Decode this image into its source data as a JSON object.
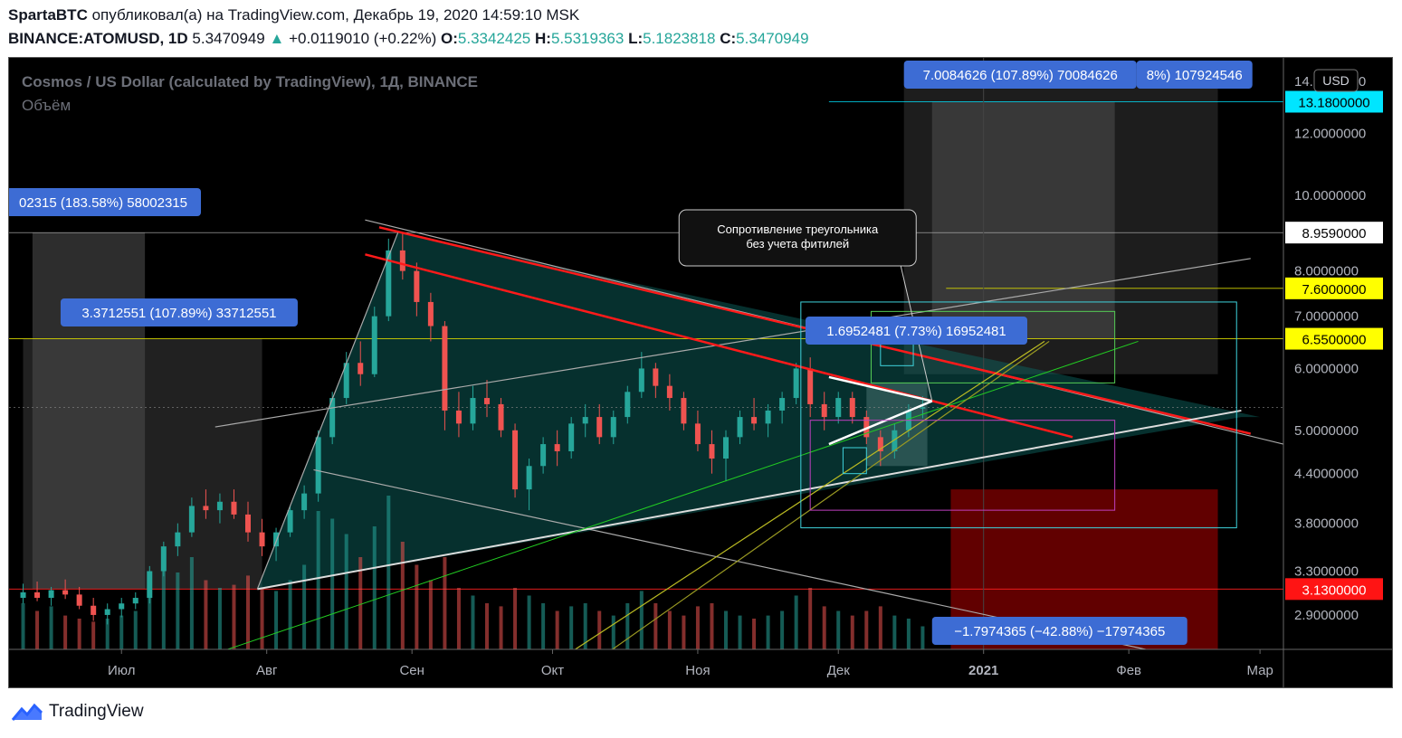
{
  "header": {
    "author": "SpartaBTC",
    "published_text": "опубликовал(а) на TradingView.com, Декабрь 19, 2020 14:59:10 MSK",
    "symbol": "BINANCE:ATOMUSD, 1D",
    "last": "5.3470949",
    "change": "+0.0119010 (+0.22%)",
    "o_label": "O:",
    "o_value": "5.3342425",
    "h_label": "H:",
    "h_value": "5.5319363",
    "l_label": "L:",
    "l_value": "5.1823818",
    "c_label": "C:",
    "c_value": "5.3470949"
  },
  "footer": {
    "brand": "TradingView"
  },
  "colors": {
    "up": "#26a69a",
    "down": "#ef5350",
    "background": "#000000",
    "resistance": "#ff1a1a",
    "label_bg": "#3d6cd4",
    "highlight_yellow": "#ffff00",
    "highlight_cyan": "#00e5ff"
  },
  "chart_data": {
    "type": "candlestick",
    "title": "Cosmos / US Dollar (calculated by TradingView), 1Д, BINANCE",
    "subtitle": "Объём",
    "currency": "USD",
    "x_ticks": [
      "Июл",
      "Авг",
      "Сен",
      "Окт",
      "Ноя",
      "Дек",
      "2021",
      "Фев",
      "Мар"
    ],
    "y_ticks": [
      "14.0000000",
      "12.0000000",
      "10.0000000",
      "8.0000000",
      "7.0000000",
      "6.0000000",
      "5.0000000",
      "4.4000000",
      "3.8000000",
      "3.3000000",
      "2.9000000"
    ],
    "x_range": [
      "2020-06-07",
      "2021-03-06"
    ],
    "y_range_log": [
      2.62,
      15.0
    ],
    "price_labels": [
      {
        "value": "13.1800000",
        "style": "cyan"
      },
      {
        "value": "8.9590000",
        "style": "white"
      },
      {
        "value": "7.6000000",
        "style": "yellow"
      },
      {
        "value": "6.5500000",
        "style": "yellow"
      },
      {
        "value": "3.1300000",
        "style": "red"
      }
    ],
    "measure_labels": [
      "7.0084626 (107.89%) 70084626",
      "8%) 107924546",
      "02315 (183.58%) 58002315",
      "3.3712551 (107.89%) 33712551",
      "1.6952481 (7.73%) 16952481",
      "−1.7974365 (−42.88%) −17974365"
    ],
    "annotation": "Сопротивление треугольника\nбез учета фитилей",
    "series": [
      {
        "type": "ohlc",
        "points": [
          [
            "2020-06-10",
            3.05,
            3.18,
            3.0,
            3.1
          ],
          [
            "2020-06-13",
            3.1,
            3.2,
            3.02,
            3.05
          ],
          [
            "2020-06-16",
            3.05,
            3.15,
            2.98,
            3.12
          ],
          [
            "2020-06-19",
            3.12,
            3.22,
            3.04,
            3.08
          ],
          [
            "2020-06-22",
            3.08,
            3.15,
            2.95,
            2.98
          ],
          [
            "2020-06-25",
            2.98,
            3.05,
            2.85,
            2.9
          ],
          [
            "2020-06-28",
            2.9,
            3.0,
            2.82,
            2.95
          ],
          [
            "2020-07-01",
            2.95,
            3.05,
            2.88,
            3.0
          ],
          [
            "2020-07-04",
            3.0,
            3.1,
            2.95,
            3.05
          ],
          [
            "2020-07-07",
            3.05,
            3.35,
            3.0,
            3.3
          ],
          [
            "2020-07-10",
            3.3,
            3.6,
            3.25,
            3.55
          ],
          [
            "2020-07-13",
            3.55,
            3.8,
            3.45,
            3.7
          ],
          [
            "2020-07-16",
            3.7,
            4.1,
            3.65,
            4.0
          ],
          [
            "2020-07-19",
            4.0,
            4.2,
            3.85,
            3.95
          ],
          [
            "2020-07-22",
            3.95,
            4.15,
            3.8,
            4.05
          ],
          [
            "2020-07-25",
            4.05,
            4.2,
            3.85,
            3.9
          ],
          [
            "2020-07-28",
            3.9,
            4.05,
            3.6,
            3.7
          ],
          [
            "2020-07-31",
            3.7,
            3.85,
            3.45,
            3.55
          ],
          [
            "2020-08-03",
            3.55,
            3.75,
            3.4,
            3.7
          ],
          [
            "2020-08-06",
            3.7,
            4.0,
            3.65,
            3.95
          ],
          [
            "2020-08-09",
            3.95,
            4.25,
            3.85,
            4.15
          ],
          [
            "2020-08-12",
            4.15,
            5.0,
            4.05,
            4.9
          ],
          [
            "2020-08-15",
            4.9,
            5.6,
            4.8,
            5.5
          ],
          [
            "2020-08-18",
            5.5,
            6.3,
            5.4,
            6.1
          ],
          [
            "2020-08-21",
            6.1,
            6.5,
            5.7,
            5.9
          ],
          [
            "2020-08-24",
            5.9,
            7.2,
            5.85,
            7.0
          ],
          [
            "2020-08-27",
            7.0,
            8.8,
            6.9,
            8.5
          ],
          [
            "2020-08-30",
            8.5,
            8.96,
            7.8,
            8.0
          ],
          [
            "2020-09-02",
            8.0,
            8.2,
            7.0,
            7.3
          ],
          [
            "2020-09-05",
            7.3,
            7.5,
            6.5,
            6.8
          ],
          [
            "2020-09-08",
            6.8,
            6.9,
            5.0,
            5.3
          ],
          [
            "2020-09-11",
            5.3,
            5.6,
            4.9,
            5.1
          ],
          [
            "2020-09-14",
            5.1,
            5.7,
            5.0,
            5.5
          ],
          [
            "2020-09-17",
            5.5,
            5.8,
            5.2,
            5.4
          ],
          [
            "2020-09-20",
            5.4,
            5.5,
            4.9,
            5.0
          ],
          [
            "2020-09-23",
            5.0,
            5.1,
            4.1,
            4.2
          ],
          [
            "2020-09-26",
            4.2,
            4.6,
            3.95,
            4.5
          ],
          [
            "2020-09-29",
            4.5,
            4.9,
            4.4,
            4.8
          ],
          [
            "2020-10-02",
            4.8,
            5.0,
            4.5,
            4.7
          ],
          [
            "2020-10-05",
            4.7,
            5.2,
            4.6,
            5.1
          ],
          [
            "2020-10-08",
            5.1,
            5.4,
            4.9,
            5.2
          ],
          [
            "2020-10-11",
            5.2,
            5.4,
            4.8,
            4.9
          ],
          [
            "2020-10-14",
            4.9,
            5.3,
            4.8,
            5.2
          ],
          [
            "2020-10-17",
            5.2,
            5.7,
            5.1,
            5.6
          ],
          [
            "2020-10-20",
            5.6,
            6.3,
            5.5,
            6.0
          ],
          [
            "2020-10-23",
            6.0,
            6.1,
            5.5,
            5.7
          ],
          [
            "2020-10-26",
            5.7,
            5.9,
            5.3,
            5.5
          ],
          [
            "2020-10-29",
            5.5,
            5.6,
            5.0,
            5.1
          ],
          [
            "2020-11-01",
            5.1,
            5.3,
            4.7,
            4.8
          ],
          [
            "2020-11-04",
            4.8,
            5.0,
            4.4,
            4.6
          ],
          [
            "2020-11-07",
            4.6,
            5.0,
            4.3,
            4.9
          ],
          [
            "2020-11-10",
            4.9,
            5.3,
            4.8,
            5.2
          ],
          [
            "2020-11-13",
            5.2,
            5.5,
            5.0,
            5.1
          ],
          [
            "2020-11-16",
            5.1,
            5.4,
            4.9,
            5.3
          ],
          [
            "2020-11-19",
            5.3,
            5.6,
            5.1,
            5.5
          ],
          [
            "2020-11-22",
            5.5,
            6.1,
            5.4,
            6.0
          ],
          [
            "2020-11-25",
            6.0,
            6.2,
            5.2,
            5.4
          ],
          [
            "2020-11-28",
            5.4,
            5.6,
            5.0,
            5.2
          ],
          [
            "2020-12-01",
            5.2,
            5.6,
            5.1,
            5.5
          ],
          [
            "2020-12-04",
            5.5,
            5.6,
            5.1,
            5.2
          ],
          [
            "2020-12-07",
            5.2,
            5.3,
            4.8,
            4.9
          ],
          [
            "2020-12-10",
            4.9,
            5.0,
            4.5,
            4.7
          ],
          [
            "2020-12-13",
            4.7,
            5.1,
            4.6,
            5.0
          ],
          [
            "2020-12-16",
            5.0,
            5.4,
            4.9,
            5.3
          ],
          [
            "2020-12-19",
            5.33,
            5.53,
            5.18,
            5.35
          ]
        ]
      }
    ],
    "volume": [
      [
        "2020-06-10",
        0.3
      ],
      [
        "2020-06-13",
        0.25
      ],
      [
        "2020-06-16",
        0.28
      ],
      [
        "2020-06-19",
        0.22
      ],
      [
        "2020-06-22",
        0.2
      ],
      [
        "2020-06-25",
        0.18
      ],
      [
        "2020-06-28",
        0.2
      ],
      [
        "2020-07-01",
        0.22
      ],
      [
        "2020-07-04",
        0.25
      ],
      [
        "2020-07-07",
        0.45
      ],
      [
        "2020-07-10",
        0.55
      ],
      [
        "2020-07-13",
        0.5
      ],
      [
        "2020-07-16",
        0.6
      ],
      [
        "2020-07-19",
        0.45
      ],
      [
        "2020-07-22",
        0.4
      ],
      [
        "2020-07-25",
        0.42
      ],
      [
        "2020-07-28",
        0.48
      ],
      [
        "2020-07-31",
        0.4
      ],
      [
        "2020-08-03",
        0.38
      ],
      [
        "2020-08-06",
        0.45
      ],
      [
        "2020-08-09",
        0.55
      ],
      [
        "2020-08-12",
        0.9
      ],
      [
        "2020-08-15",
        0.85
      ],
      [
        "2020-08-18",
        0.75
      ],
      [
        "2020-08-21",
        0.6
      ],
      [
        "2020-08-24",
        0.8
      ],
      [
        "2020-08-27",
        1.0
      ],
      [
        "2020-08-30",
        0.7
      ],
      [
        "2020-09-02",
        0.55
      ],
      [
        "2020-09-05",
        0.45
      ],
      [
        "2020-09-08",
        0.6
      ],
      [
        "2020-09-11",
        0.4
      ],
      [
        "2020-09-14",
        0.35
      ],
      [
        "2020-09-17",
        0.3
      ],
      [
        "2020-09-20",
        0.28
      ],
      [
        "2020-09-23",
        0.4
      ],
      [
        "2020-09-26",
        0.35
      ],
      [
        "2020-09-29",
        0.3
      ],
      [
        "2020-10-02",
        0.25
      ],
      [
        "2020-10-05",
        0.28
      ],
      [
        "2020-10-08",
        0.3
      ],
      [
        "2020-10-11",
        0.25
      ],
      [
        "2020-10-14",
        0.22
      ],
      [
        "2020-10-17",
        0.3
      ],
      [
        "2020-10-20",
        0.38
      ],
      [
        "2020-10-23",
        0.3
      ],
      [
        "2020-10-26",
        0.25
      ],
      [
        "2020-10-29",
        0.22
      ],
      [
        "2020-11-01",
        0.28
      ],
      [
        "2020-11-04",
        0.3
      ],
      [
        "2020-11-07",
        0.25
      ],
      [
        "2020-11-10",
        0.22
      ],
      [
        "2020-11-13",
        0.2
      ],
      [
        "2020-11-16",
        0.22
      ],
      [
        "2020-11-19",
        0.25
      ],
      [
        "2020-11-22",
        0.35
      ],
      [
        "2020-11-25",
        0.4
      ],
      [
        "2020-11-28",
        0.28
      ],
      [
        "2020-12-01",
        0.25
      ],
      [
        "2020-12-04",
        0.22
      ],
      [
        "2020-12-07",
        0.25
      ],
      [
        "2020-12-10",
        0.28
      ],
      [
        "2020-12-13",
        0.22
      ],
      [
        "2020-12-16",
        0.2
      ],
      [
        "2020-12-19",
        0.15
      ]
    ]
  }
}
